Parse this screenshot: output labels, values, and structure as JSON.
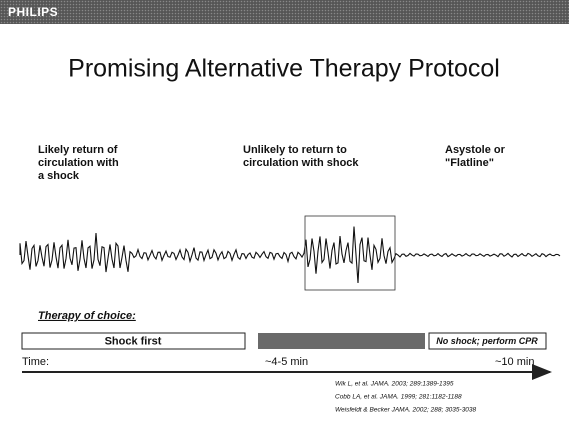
{
  "header": {
    "brand": "PHILIPS"
  },
  "title": "Promising Alternative Therapy Protocol",
  "phases": [
    {
      "lines": [
        "Likely return of",
        "circulation with",
        "a shock"
      ]
    },
    {
      "lines": [
        "Unlikely to return to",
        "circulation with shock"
      ]
    },
    {
      "lines": [
        "Asystole or",
        "\"Flatline\""
      ]
    }
  ],
  "therapy": {
    "label": "Therapy of choice:",
    "first": "Shock first",
    "last": "No shock; perform CPR"
  },
  "timeline": {
    "label": "Time:",
    "mid": "~4-5 min",
    "end": "~10 min"
  },
  "references": [
    "Wik L, et al. JAMA. 2003; 289:1389-1395",
    "Cobb LA, et al. JAMA. 1999; 281:1182-1188",
    "Weisfeldt & Becker JAMA. 2002; 288; 3035-3038"
  ]
}
